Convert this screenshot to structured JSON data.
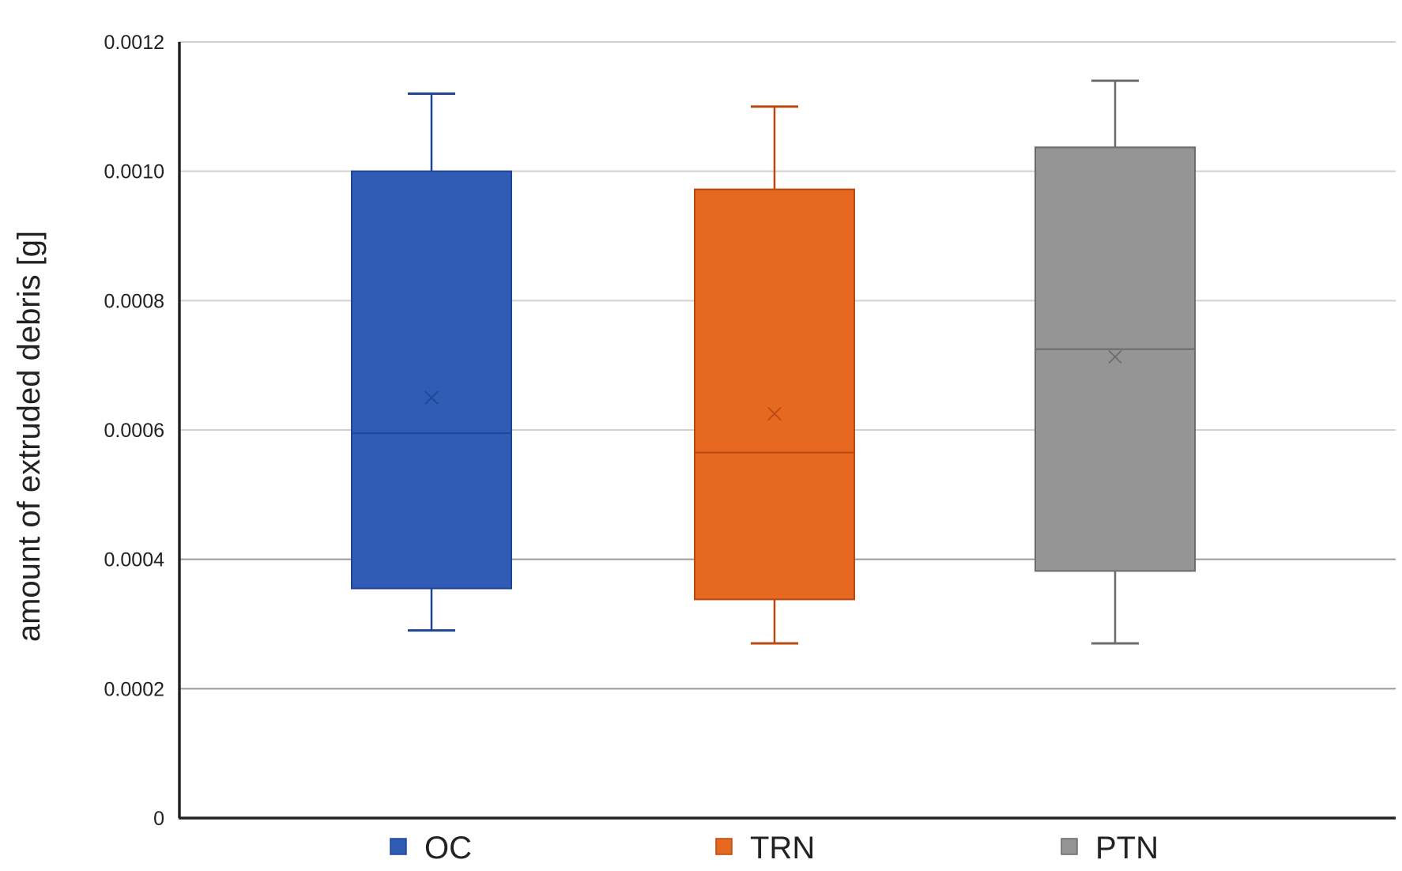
{
  "chart_data": {
    "type": "boxplot",
    "title": "",
    "xlabel": "",
    "ylabel": "amount of extruded debris [g]",
    "ylim": [
      0,
      0.0012
    ],
    "yticks": [
      "0",
      "0.0002",
      "0.0004",
      "0.0006",
      "0.0008",
      "0.0010",
      "0.0012"
    ],
    "ytick_values": [
      0,
      0.0002,
      0.0004,
      0.0006,
      0.0008,
      0.001,
      0.0012
    ],
    "grid": true,
    "legend_position": "bottom",
    "series": [
      {
        "name": "OC",
        "color": "#305CB6",
        "edge": "#1F4596",
        "min": 0.00029,
        "q1": 0.000355,
        "median": 0.000595,
        "mean": 0.00065,
        "q3": 0.001,
        "max": 0.00112
      },
      {
        "name": "TRN",
        "color": "#E76820",
        "edge": "#B84A10",
        "min": 0.00027,
        "q1": 0.000338,
        "median": 0.000565,
        "mean": 0.000625,
        "q3": 0.000972,
        "max": 0.0011
      },
      {
        "name": "PTN",
        "color": "#959595",
        "edge": "#6C6C6C",
        "min": 0.00027,
        "q1": 0.000382,
        "median": 0.000725,
        "mean": 0.000713,
        "q3": 0.001037,
        "max": 0.00114
      }
    ]
  }
}
